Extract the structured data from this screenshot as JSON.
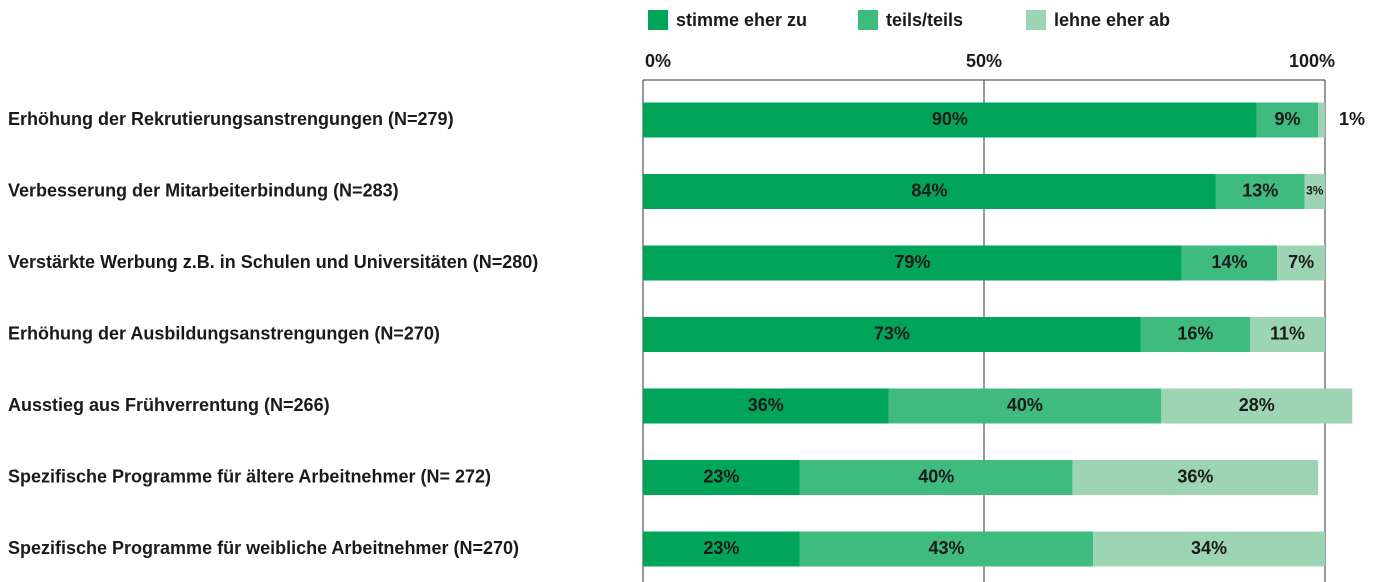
{
  "chart_data": {
    "type": "stacked-bar-horizontal",
    "categories": [
      "Erhöhung der Rekrutierungsanstrengungen (N=279)",
      "Verbesserung der Mitarbeiterbindung (N=283)",
      "Verstärkte Werbung z.B. in Schulen und Universitäten (N=280)",
      "Erhöhung der Ausbildungsanstrengungen (N=270)",
      "Ausstieg aus Frühverrentung (N=266)",
      "Spezifische Programme für ältere Arbeitnehmer (N= 272)",
      "Spezifische Programme für weibliche Arbeitnehmer (N=270)"
    ],
    "series": [
      {
        "name": "stimme eher zu",
        "color": "#00a55a",
        "values": [
          90,
          84,
          79,
          73,
          36,
          23,
          23
        ],
        "value_labels": [
          "90%",
          "84%",
          "79%",
          "73%",
          "36%",
          "23%",
          "23%"
        ]
      },
      {
        "name": "teils/teils",
        "color": "#3fbb80",
        "values": [
          9,
          13,
          14,
          16,
          40,
          40,
          43
        ],
        "value_labels": [
          "9%",
          "13%",
          "14%",
          "16%",
          "40%",
          "40%",
          "43%"
        ]
      },
      {
        "name": "lehne eher ab",
        "color": "#9dd5b4",
        "values": [
          1,
          3,
          7,
          11,
          28,
          36,
          34
        ],
        "value_labels": [
          "1%",
          "3%",
          "7%",
          "11%",
          "28%",
          "36%",
          "34%"
        ]
      }
    ],
    "xlim": [
      0,
      100
    ],
    "xticks": [
      {
        "value": 0,
        "label": "0%"
      },
      {
        "value": 50,
        "label": "50%"
      },
      {
        "value": 100,
        "label": "100%"
      }
    ],
    "grid": true,
    "legend": "top"
  }
}
